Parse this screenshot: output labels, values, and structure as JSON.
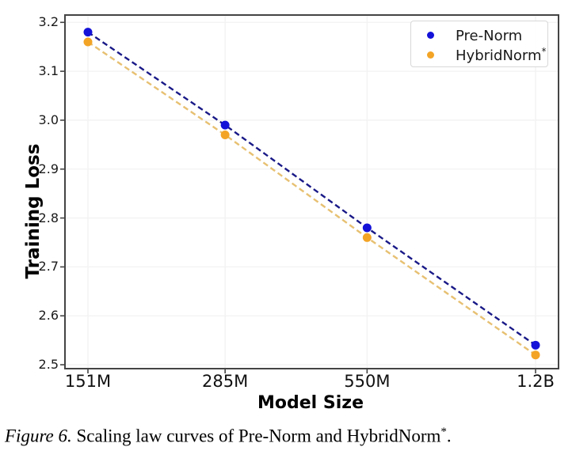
{
  "chart_data": {
    "type": "line",
    "title": "",
    "xlabel": "Model Size",
    "ylabel": "Training Loss",
    "categories": [
      "151M",
      "285M",
      "550M",
      "1.2B"
    ],
    "x_numeric_millions": [
      151,
      285,
      550,
      1200
    ],
    "x_scale": "log",
    "series": [
      {
        "name": "Pre-Norm",
        "values": [
          3.18,
          2.99,
          2.78,
          2.54
        ],
        "marker_color": "#1412d8",
        "line_color": "#191988",
        "line_style": "dashed"
      },
      {
        "name": "HybridNorm*",
        "values": [
          3.16,
          2.97,
          2.76,
          2.52
        ],
        "marker_color": "#f3a425",
        "line_color": "#e7c071",
        "line_style": "dashed"
      }
    ],
    "ytick_labels": [
      "3.2",
      "3.1",
      "3.0",
      "2.9",
      "2.8",
      "2.7",
      "2.6",
      "2.5"
    ],
    "yticks": [
      3.2,
      3.1,
      3.0,
      2.9,
      2.8,
      2.7,
      2.6,
      2.5
    ],
    "ylim": [
      2.492,
      3.215
    ],
    "grid": true,
    "legend_position": "upper right",
    "grid_color": "#f2f2f2",
    "spine_color": "#444444"
  },
  "legend": {
    "items": [
      {
        "label": "Pre-Norm",
        "sup": ""
      },
      {
        "label": "HybridNorm",
        "sup": "*"
      }
    ]
  },
  "caption": {
    "prefix": "Figure 6.",
    "body": " Scaling law curves of Pre-Norm and HybridNorm",
    "sup": "*",
    "suffix": "."
  }
}
